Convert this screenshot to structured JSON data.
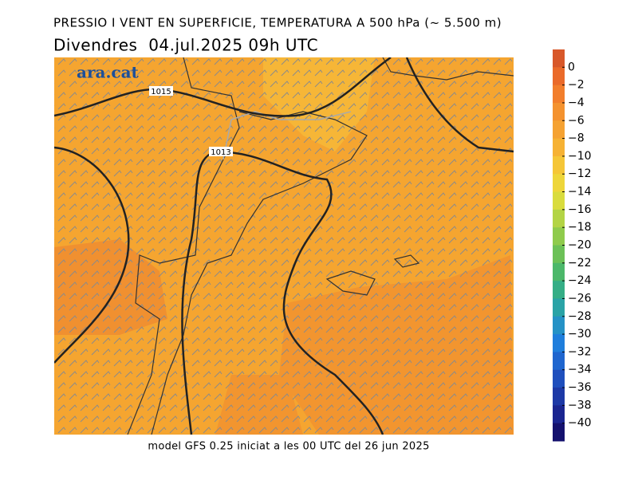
{
  "header": {
    "title": "PRESSIO I VENT EN SUPERFICIE, TEMPERATURA A 500 hPa (~ 5.500 m)",
    "subtitle": "Divendres  04.jul.2025 09h UTC"
  },
  "logo": "ara.cat",
  "isobars": [
    {
      "label": "1015"
    },
    {
      "label": "1013"
    }
  ],
  "footer": "model GFS 0.25 iniciat a les 00 UTC del 26 jun 2025",
  "colorbar": {
    "ticks": [
      {
        "value": 0,
        "label": "0"
      },
      {
        "value": -2,
        "label": "−2"
      },
      {
        "value": -4,
        "label": "−4"
      },
      {
        "value": -6,
        "label": "−6"
      },
      {
        "value": -8,
        "label": "−8"
      },
      {
        "value": -10,
        "label": "−10"
      },
      {
        "value": -12,
        "label": "−12"
      },
      {
        "value": -14,
        "label": "−14"
      },
      {
        "value": -16,
        "label": "−16"
      },
      {
        "value": -18,
        "label": "−18"
      },
      {
        "value": -20,
        "label": "−20"
      },
      {
        "value": -22,
        "label": "−22"
      },
      {
        "value": -24,
        "label": "−24"
      },
      {
        "value": -26,
        "label": "−26"
      },
      {
        "value": -28,
        "label": "−28"
      },
      {
        "value": -30,
        "label": "−30"
      },
      {
        "value": -32,
        "label": "−32"
      },
      {
        "value": -34,
        "label": "−34"
      },
      {
        "value": -36,
        "label": "−36"
      },
      {
        "value": -38,
        "label": "−38"
      },
      {
        "value": -40,
        "label": "−40"
      }
    ],
    "colors": [
      "#d8582a",
      "#ea6a2a",
      "#f27e2c",
      "#f4922f",
      "#f5a232",
      "#f6b234",
      "#f5c637",
      "#eed63a",
      "#d9dc3d",
      "#b3d445",
      "#8fcb4c",
      "#6cc157",
      "#4cb86a",
      "#35ae86",
      "#2aa3a6",
      "#2592c6",
      "#1f7edc",
      "#1f66cf",
      "#1f4fbd",
      "#1d39a6",
      "#1a2590",
      "#14116e"
    ]
  }
}
